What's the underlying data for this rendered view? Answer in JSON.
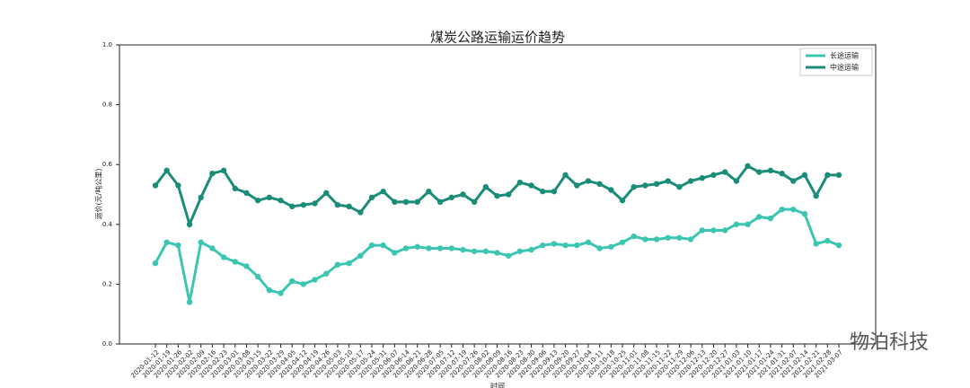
{
  "chart_data": {
    "type": "line",
    "title": "煤炭公路运输运价趋势",
    "x_label": "时间",
    "y_label": "运价(元/吨公里)",
    "categories": [
      "2020-01-12",
      "2020-01-19",
      "2020-01-26",
      "2020-02-02",
      "2020-02-09",
      "2020-02-16",
      "2020-02-23",
      "2020-03-01",
      "2020-03-08",
      "2020-03-15",
      "2020-03-22",
      "2020-03-29",
      "2020-04-05",
      "2020-04-12",
      "2020-04-19",
      "2020-04-26",
      "2020-05-03",
      "2020-05-10",
      "2020-05-17",
      "2020-05-24",
      "2020-05-31",
      "2020-06-07",
      "2020-06-14",
      "2020-06-21",
      "2020-06-28",
      "2020-07-05",
      "2020-07-12",
      "2020-07-19",
      "2020-07-26",
      "2020-08-02",
      "2020-08-09",
      "2020-08-16",
      "2020-08-23",
      "2020-08-30",
      "2020-09-06",
      "2020-09-13",
      "2020-09-20",
      "2020-09-27",
      "2020-10-04",
      "2020-10-11",
      "2020-10-18",
      "2020-10-25",
      "2020-11-01",
      "2020-11-08",
      "2020-11-15",
      "2020-11-22",
      "2020-11-29",
      "2020-12-06",
      "2020-12-13",
      "2020-12-20",
      "2020-12-27",
      "2021-01-03",
      "2021-01-10",
      "2021-01-17",
      "2021-01-24",
      "2021-01-31",
      "2021-02-07",
      "2021-02-14",
      "2021-02-21",
      "2021-02-28",
      "2021-03-07"
    ],
    "series": [
      {
        "name": "长途运输",
        "color": "#3cc6b2",
        "values": [
          0.27,
          0.34,
          0.33,
          0.14,
          0.34,
          0.32,
          0.29,
          0.275,
          0.26,
          0.225,
          0.18,
          0.17,
          0.21,
          0.2,
          0.215,
          0.235,
          0.265,
          0.27,
          0.295,
          0.33,
          0.33,
          0.305,
          0.32,
          0.325,
          0.32,
          0.32,
          0.32,
          0.315,
          0.31,
          0.31,
          0.305,
          0.295,
          0.31,
          0.315,
          0.33,
          0.335,
          0.33,
          0.33,
          0.34,
          0.32,
          0.325,
          0.34,
          0.36,
          0.35,
          0.35,
          0.355,
          0.355,
          0.35,
          0.38,
          0.38,
          0.38,
          0.4,
          0.4,
          0.425,
          0.42,
          0.45,
          0.45,
          0.435,
          0.335,
          0.345,
          0.33
        ]
      },
      {
        "name": "中途运输",
        "color": "#1a8c78",
        "values": [
          0.53,
          0.58,
          0.53,
          0.4,
          0.49,
          0.57,
          0.58,
          0.52,
          0.505,
          0.48,
          0.49,
          0.48,
          0.46,
          0.465,
          0.47,
          0.505,
          0.465,
          0.46,
          0.44,
          0.49,
          0.51,
          0.475,
          0.475,
          0.475,
          0.51,
          0.475,
          0.49,
          0.5,
          0.475,
          0.525,
          0.495,
          0.5,
          0.54,
          0.53,
          0.51,
          0.51,
          0.565,
          0.53,
          0.545,
          0.535,
          0.515,
          0.48,
          0.525,
          0.53,
          0.535,
          0.545,
          0.525,
          0.545,
          0.555,
          0.565,
          0.575,
          0.545,
          0.595,
          0.575,
          0.58,
          0.57,
          0.545,
          0.565,
          0.495,
          0.565,
          0.565
        ]
      }
    ],
    "ylim": [
      0,
      1
    ],
    "yticks": [
      {
        "value": 0,
        "label": "0.0"
      },
      0.2,
      0.4,
      0.6,
      0.8,
      {
        "value": 1,
        "label": "1.0"
      }
    ],
    "legend": "upper right",
    "watermark": "物泊科技"
  }
}
